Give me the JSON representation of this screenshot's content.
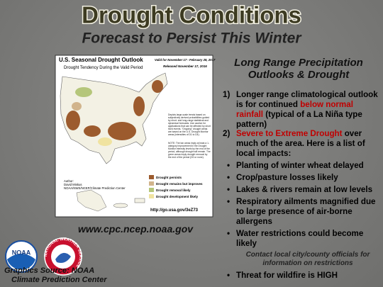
{
  "header": {
    "title": "Drought Conditions",
    "subtitle": "Forecast to Persist This Winter"
  },
  "map": {
    "title": "U.S. Seasonal Drought Outlook",
    "valid": "Valid for November 17 - February 28, 2017",
    "subtitle": "Drought Tendency During the Valid Period",
    "released": "Released November 17, 2016",
    "notes": [
      "Depicts large-scale trends based on subjectively derived probabilities guided by short- and long-range statistical and dynamical forecasts. Use caution for applications that can be affected by short lived events. \"Ongoing\" drought areas are based on the U.S. Drought Monitor areas (intensities of D1 to D4).",
      "NOTE: The tan areas imply at least a 1-category improvement in the Drought Monitor intensity levels by the end of the period, although drought will remain. The green areas imply drought removal by the end of the period (D0 or none)."
    ],
    "legend": [
      "Drought persists",
      "Drought remains but improves",
      "Drought removal likely",
      "Drought development likely"
    ],
    "author": [
      "Author:",
      "David Miskus",
      "NOAA/NWS/NCEP/Climate Prediction Center"
    ],
    "url": "http://go.usa.gov/3eZ73"
  },
  "panel": {
    "heading": [
      "Long Range Precipitation",
      "Outlooks & Drought"
    ],
    "item1": {
      "number": "1)",
      "text": [
        "Longer range climatological outlook is for continued ",
        "below normal rainfall",
        " (typical of a La Niña type pattern)"
      ]
    },
    "item2": {
      "number": "2)",
      "text": [
        "Severe to Extreme Drought",
        " over much of the area. Here is a list of local impacts:"
      ]
    },
    "impacts": [
      "Planting of winter wheat delayed",
      "Crop/pasture losses likely",
      "Lakes & rivers remain at low levels",
      "Respiratory ailments magnified due to large presence of air-borne allergens",
      "Water restrictions could become likely",
      "Threat for wildfire is HIGH"
    ],
    "impact_note": "Contact local city/county officials for information on restrictions"
  },
  "website": "www.cpc.ncep.noaa.gov",
  "logos": {
    "noaa": "NOAA",
    "nws": "NATIONAL WEATHER SERVICE"
  },
  "source": [
    "Graphics Source: NOAA",
    "Climate Prediction Center"
  ]
}
